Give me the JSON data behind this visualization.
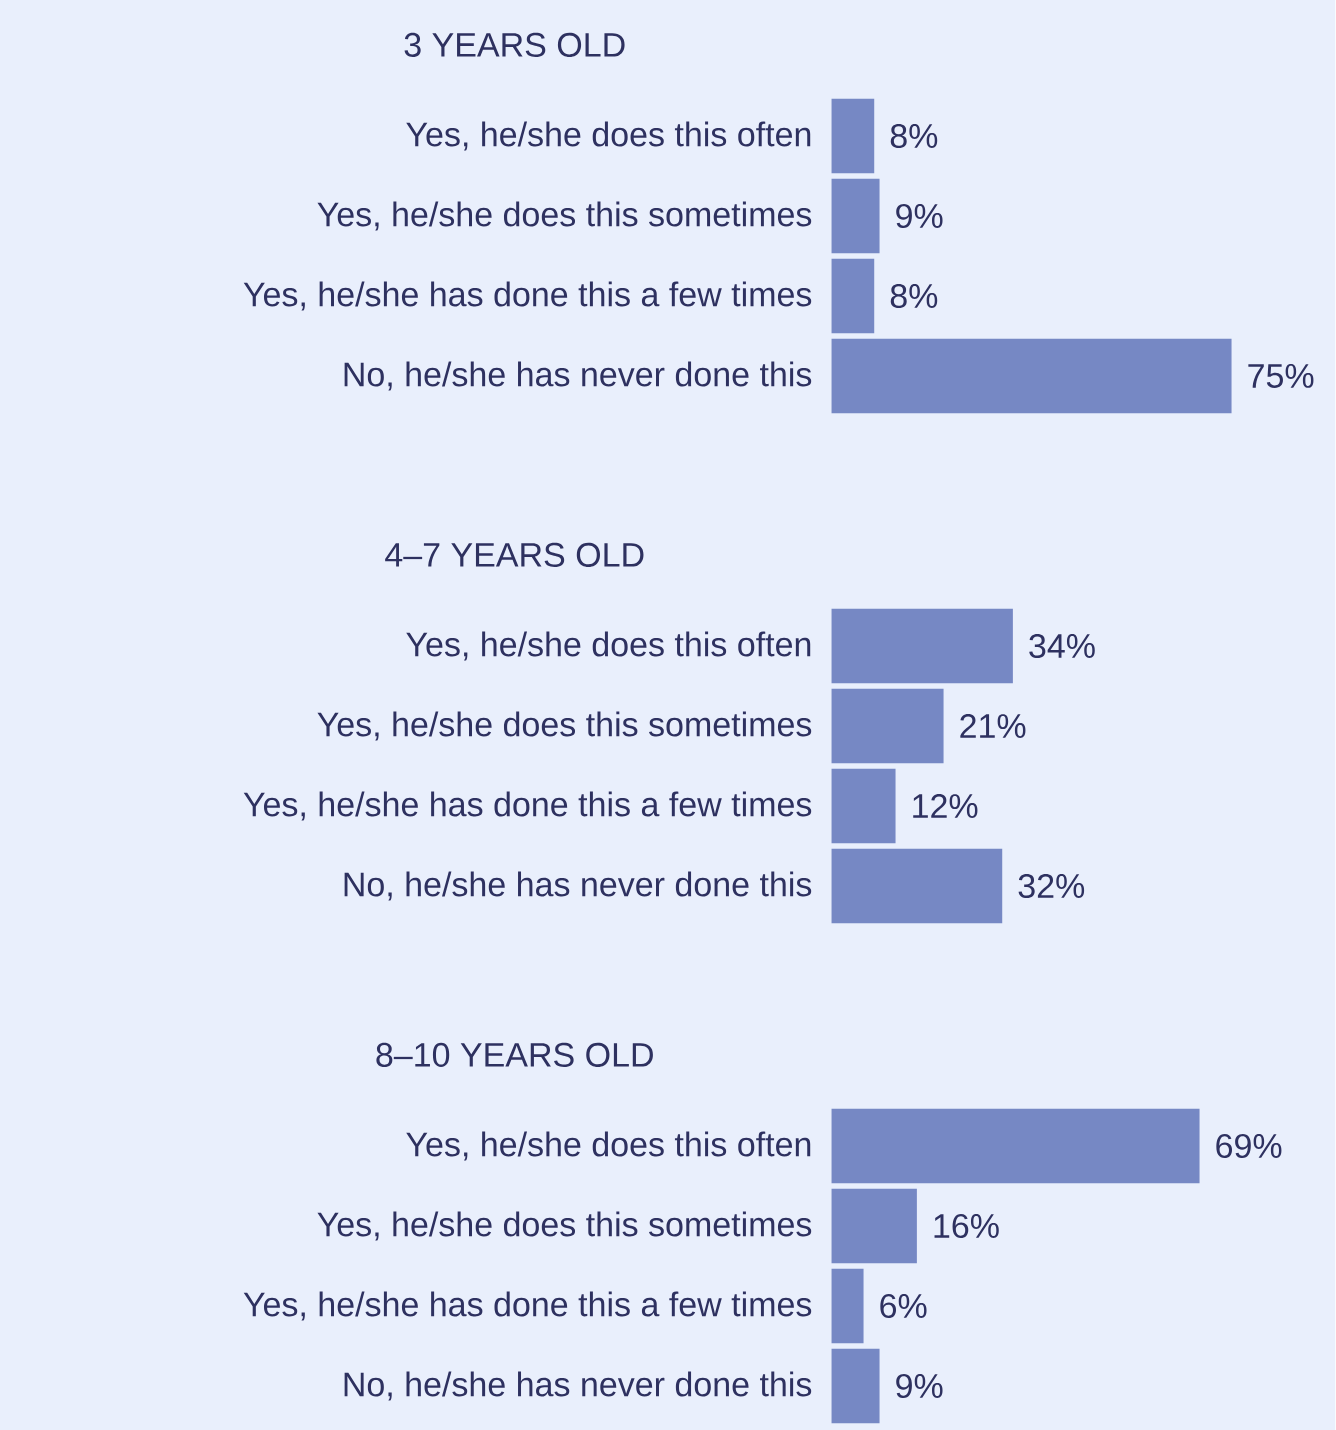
{
  "chart_data": [
    {
      "type": "bar",
      "orientation": "horizontal",
      "title": "3 YEARS OLD",
      "categories": [
        "Yes, he/she does this often",
        "Yes, he/she does this sometimes",
        "Yes, he/she has done this a few times",
        "No, he/she has never done this"
      ],
      "values": [
        8,
        9,
        8,
        75
      ],
      "value_labels": [
        "8%",
        "9%",
        "8%",
        "75%"
      ],
      "color": "#7688c4"
    },
    {
      "type": "bar",
      "orientation": "horizontal",
      "title": "4–7 YEARS OLD",
      "categories": [
        "Yes, he/she does this often",
        "Yes, he/she does this sometimes",
        "Yes, he/she has done this a few times",
        "No, he/she has never done this"
      ],
      "values": [
        34,
        21,
        12,
        32
      ],
      "value_labels": [
        "34%",
        "21%",
        "12%",
        "32%"
      ],
      "color": "#7688c4"
    },
    {
      "type": "bar",
      "orientation": "horizontal",
      "title": "8–10 YEARS OLD",
      "categories": [
        "Yes, he/she does this often",
        "Yes, he/she does this sometimes",
        "Yes, he/she has done this a few times",
        "No, he/she has never done this"
      ],
      "values": [
        69,
        16,
        6,
        9
      ],
      "value_labels": [
        "69%",
        "16%",
        "6%",
        "9%"
      ],
      "color": "#7688c4"
    }
  ]
}
